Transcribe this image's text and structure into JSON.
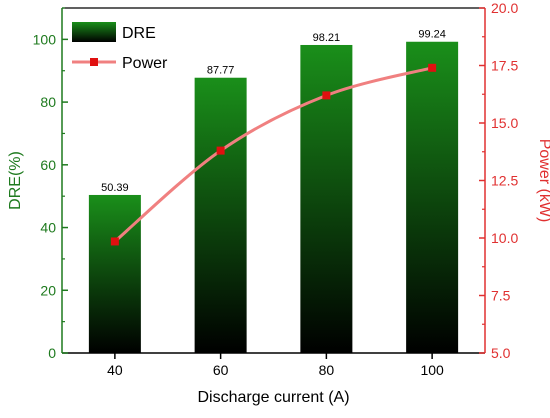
{
  "chart_data": {
    "type": "bar+line",
    "title": "",
    "xlabel": "Discharge current (A)",
    "ylabel_left": "DRE(%)",
    "ylabel_right": "Power (kW)",
    "categories": [
      "40",
      "60",
      "80",
      "100"
    ],
    "ylim_left": [
      0,
      110
    ],
    "yticks_left": [
      "0",
      "20",
      "40",
      "60",
      "80",
      "100"
    ],
    "ylim_right": [
      5.0,
      20.0
    ],
    "yticks_right": [
      "5.0",
      "7.5",
      "10.0",
      "12.5",
      "15.0",
      "17.5",
      "20.0"
    ],
    "grid": false,
    "legend_position": "top-left",
    "series": [
      {
        "name": "DRE",
        "type": "bar",
        "axis": "left",
        "values": [
          50.39,
          87.77,
          98.21,
          99.24
        ],
        "value_labels": [
          "50.39",
          "87.77",
          "98.21",
          "99.24"
        ],
        "color_top": "#1a8f1a",
        "color_bottom": "#000000"
      },
      {
        "name": "Power",
        "type": "line",
        "axis": "right",
        "values": [
          9.85,
          13.8,
          16.2,
          17.4
        ],
        "line_color": "#f08080",
        "marker_color": "#e01010"
      }
    ],
    "left_axis_color": "#1e7a1e",
    "right_axis_color": "#e03030"
  }
}
